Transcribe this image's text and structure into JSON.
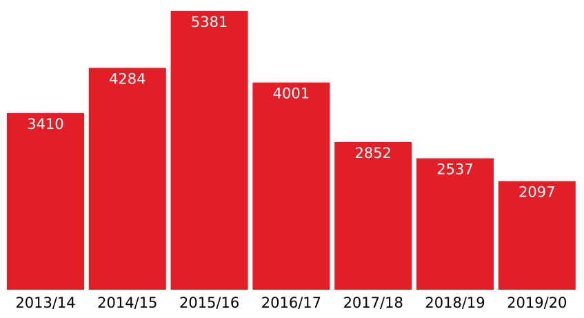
{
  "chart_data": {
    "type": "bar",
    "categories": [
      "2013/14",
      "2014/15",
      "2015/16",
      "2016/17",
      "2017/18",
      "2018/19",
      "2019/20"
    ],
    "values": [
      3410,
      4284,
      5381,
      4001,
      2852,
      2537,
      2097
    ],
    "data_labels": [
      "3410",
      "4284",
      "5381",
      "4001",
      "2852",
      "2537",
      "2097"
    ],
    "title": "",
    "xlabel": "",
    "ylabel": "",
    "ylim": [
      0,
      5381
    ],
    "grid": false,
    "legend": "none",
    "bar_color": "#e31e26"
  }
}
